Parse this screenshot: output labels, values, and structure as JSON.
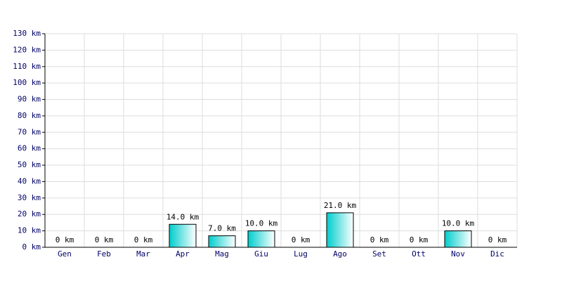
{
  "chart_data": {
    "type": "bar",
    "categories": [
      "Gen",
      "Feb",
      "Mar",
      "Apr",
      "Mag",
      "Giu",
      "Lug",
      "Ago",
      "Set",
      "Ott",
      "Nov",
      "Dic"
    ],
    "values": [
      0,
      0,
      0,
      14,
      7,
      10,
      0,
      21,
      0,
      0,
      10,
      0
    ],
    "value_labels": [
      "0 km",
      "0 km",
      "0 km",
      "14.0 km",
      "7.0 km",
      "10.0 km",
      "0 km",
      "21.0 km",
      "0 km",
      "0 km",
      "10.0 km",
      "0 km"
    ],
    "color": "#00cccc",
    "ylim": [
      0,
      130
    ],
    "yticks": [
      {
        "value": 0,
        "label": "0 km"
      },
      {
        "value": 10,
        "label": "10 km"
      },
      {
        "value": 20,
        "label": "20 km"
      },
      {
        "value": 30,
        "label": "30 km"
      },
      {
        "value": 40,
        "label": "40 km"
      },
      {
        "value": 50,
        "label": "50 km"
      },
      {
        "value": 60,
        "label": "60 km"
      },
      {
        "value": 70,
        "label": "70 km"
      },
      {
        "value": 80,
        "label": "80 km"
      },
      {
        "value": 90,
        "label": "90 km"
      },
      {
        "value": 100,
        "label": "100 km"
      },
      {
        "value": 110,
        "label": "110 km"
      },
      {
        "value": 120,
        "label": "120 km"
      },
      {
        "value": 130,
        "label": "130 km"
      }
    ],
    "grid": true
  }
}
